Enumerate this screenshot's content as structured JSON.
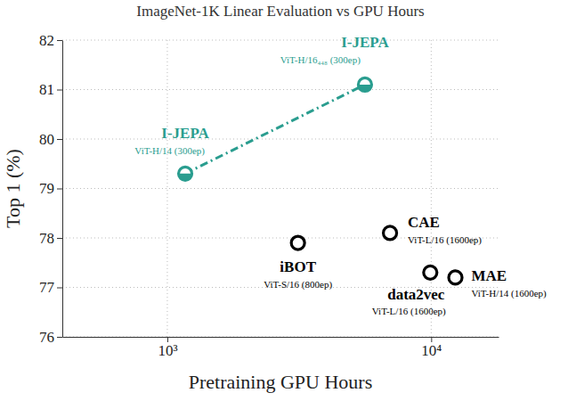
{
  "chart_data": {
    "type": "scatter",
    "title": "ImageNet-1K Linear Evaluation vs GPU Hours",
    "x_label": "Pretraining GPU Hours",
    "y_label": "Top 1 (%)",
    "log": "x",
    "grid": true,
    "xlim": [
      400,
      18000
    ],
    "xticks": [
      {
        "value": 1000,
        "label": "10³"
      },
      {
        "value": 10000,
        "label": "10⁴"
      }
    ],
    "ylim": [
      76,
      82
    ],
    "yticks": [
      76,
      77,
      78,
      79,
      80,
      81,
      82
    ],
    "series": [
      {
        "name": "I-JEPA",
        "color": "#2a9d8f",
        "type": "line",
        "line_style": "dashdot",
        "marker": "half-filled-circle",
        "x": [
          1169,
          5610
        ],
        "values": [
          79.3,
          81.1
        ],
        "point_labels": [
          "ViT-H/14 (300ep)",
          "ViT-H/16₄₄₈ (300ep)"
        ]
      },
      {
        "name": "iBOT",
        "color": "#000000",
        "type": "scatter",
        "marker": "open-circle",
        "x": [
          3126
        ],
        "values": [
          77.9
        ],
        "point_labels": [
          "ViT-S/16 (800ep)"
        ]
      },
      {
        "name": "CAE",
        "color": "#000000",
        "type": "scatter",
        "marker": "open-circle",
        "x": [
          6980
        ],
        "values": [
          78.1
        ],
        "point_labels": [
          "ViT-L/16 (1600ep)"
        ]
      },
      {
        "name": "data2vec",
        "color": "#000000",
        "type": "scatter",
        "marker": "open-circle",
        "x": [
          9920
        ],
        "values": [
          77.3
        ],
        "point_labels": [
          "ViT-L/16 (1600ep)"
        ]
      },
      {
        "name": "MAE",
        "color": "#000000",
        "type": "scatter",
        "marker": "open-circle",
        "x": [
          12350
        ],
        "values": [
          77.2
        ],
        "point_labels": [
          "ViT-H/14 (1600ep)"
        ]
      }
    ]
  }
}
